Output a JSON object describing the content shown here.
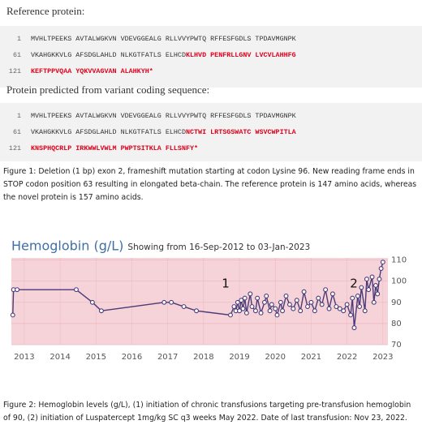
{
  "reference": {
    "label": "Reference protein:",
    "lines": [
      {
        "num": "1",
        "black": "MVHLTPEEKS AVTALWGKVN VDEVGGEALG RLLVVYPWTQ RFFESFGDLS TPDAVMGNPK"
      },
      {
        "num": "61",
        "black": "VKAHGKKVLG AFSDGLAHLD NLKGTFATLS ELHCD",
        "red": "KLHVD PENFRLLGNV LVCVLAHHFG"
      },
      {
        "num": "121",
        "red": "KEFTPPVQAA YQKVVAGVAN ALAHKYH*"
      }
    ]
  },
  "variant": {
    "label": "Protein predicted from variant coding sequence:",
    "lines": [
      {
        "num": "1",
        "black": "MVHLTPEEKS AVTALWGKVN VDEVGGEALG RLLVVYPWTQ RFFESFGDLS TPDAVMGNPK"
      },
      {
        "num": "61",
        "black": "VKAHGKKVLG AFSDGLAHLD NLKGTFATLS ELHCD",
        "red": "NCTWI LRTSGSWATC WSVCWPITLA"
      },
      {
        "num": "121",
        "red": "KNSPHQCRLP IRKWWLVWLM PWPTSITKLA FLLSNFY*"
      }
    ]
  },
  "figure1_caption": "Figure 1: Deletion (1 bp) exon 2, frameshift mutation starting at codon Lysine 96. New reading frame ends in STOP codon position 63 resulting in elongated beta-chain. The reference protein is 147 amino acids, whereas the novel protein is 157 amino acids.",
  "chart_data": {
    "type": "line",
    "title": "Hemoglobin (g/L)",
    "subtitle": "Showing from 16-Sep-2012 to 03-Jan-2023",
    "x": [
      2012.68,
      2012.7,
      2012.8,
      2014.45,
      2014.9,
      2015.15,
      2016.9,
      2017.1,
      2017.45,
      2017.8,
      2018.75,
      2018.85,
      2018.9,
      2018.95,
      2019.0,
      2019.05,
      2019.1,
      2019.15,
      2019.2,
      2019.3,
      2019.35,
      2019.45,
      2019.5,
      2019.6,
      2019.7,
      2019.75,
      2019.85,
      2019.9,
      2020.0,
      2020.05,
      2020.15,
      2020.2,
      2020.3,
      2020.4,
      2020.5,
      2020.6,
      2020.7,
      2020.8,
      2020.9,
      2021.0,
      2021.1,
      2021.2,
      2021.3,
      2021.4,
      2021.5,
      2021.6,
      2021.7,
      2021.8,
      2021.9,
      2022.0,
      2022.1,
      2022.15,
      2022.2,
      2022.3,
      2022.35,
      2022.4,
      2022.5,
      2022.55,
      2022.6,
      2022.7,
      2022.75,
      2022.8,
      2022.85,
      2022.9,
      2022.95,
      2023.0
    ],
    "series": [
      {
        "name": "Hemoglobin",
        "color": "#4b3a78",
        "values": [
          84,
          96,
          96,
          96,
          90,
          86,
          90,
          90,
          88,
          86,
          84,
          88,
          86,
          90,
          86,
          91,
          87,
          92,
          85,
          94,
          88,
          86,
          92,
          85,
          90,
          93,
          86,
          89,
          87,
          84,
          90,
          86,
          93,
          89,
          87,
          91,
          86,
          95,
          88,
          90,
          86,
          92,
          89,
          96,
          87,
          94,
          88,
          87,
          86,
          89,
          84,
          92,
          78,
          93,
          88,
          97,
          86,
          101,
          96,
          102,
          90,
          98,
          94,
          101,
          106,
          109
        ]
      }
    ],
    "xlim": [
      2012.64,
      2023.14
    ],
    "xticks": [
      2013,
      2014,
      2015,
      2016,
      2017,
      2018,
      2019,
      2020,
      2021,
      2022,
      2023
    ],
    "ylim": [
      70,
      111
    ],
    "yticks": [
      70,
      80,
      90,
      100,
      110
    ],
    "grid": true,
    "annotations": [
      "1",
      "2"
    ]
  },
  "figure2_caption": "Figure 2: Hemoglobin levels (g/L), (1) initiation of chronic transfusions targeting pre-transfusion hemoglobin of 90, (2) initiation of Luspatercept 1mg/kg SC q3 weeks May 2022. Date of last transfusion: Nov 23, 2022."
}
